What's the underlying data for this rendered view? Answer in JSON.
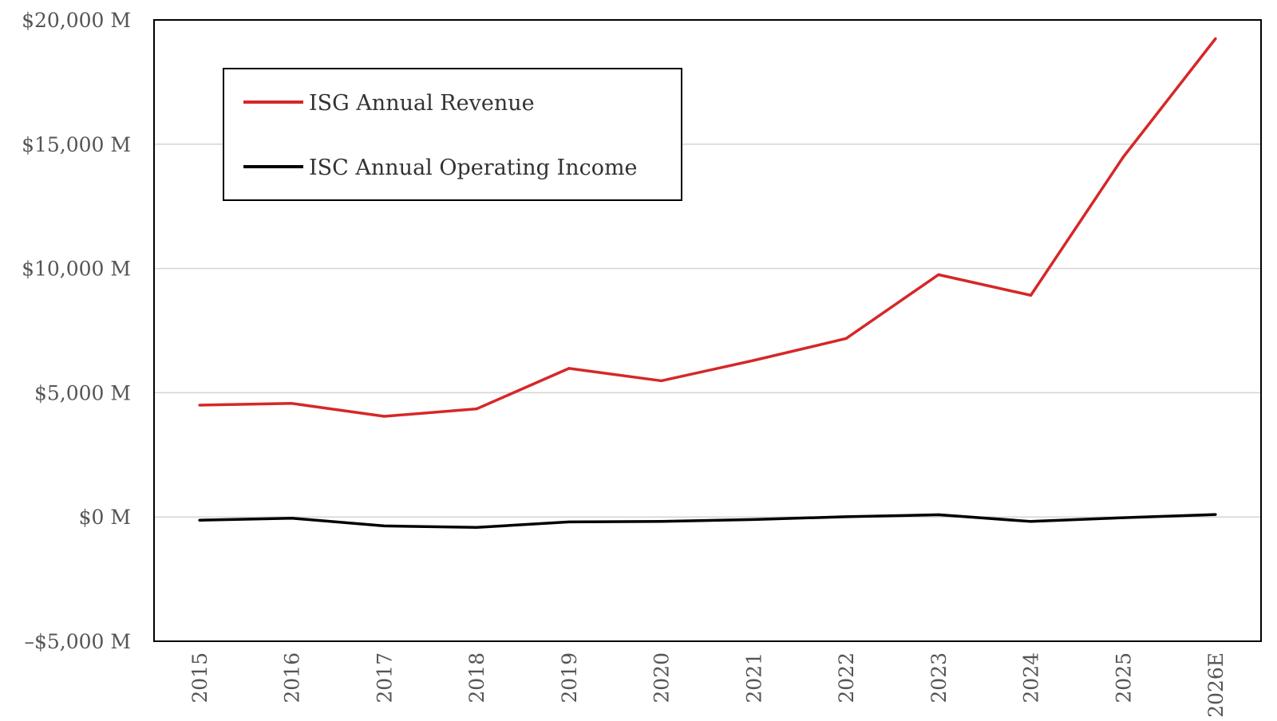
{
  "chart_data": {
    "type": "line",
    "title": "",
    "xlabel": "",
    "ylabel": "",
    "categories": [
      "2015",
      "2016",
      "2017",
      "2018",
      "2019",
      "2020",
      "2021",
      "2022",
      "2023",
      "2024",
      "2025",
      "2026E"
    ],
    "series": [
      {
        "name": "ISG Annual Revenue",
        "color": "#d62728",
        "values": [
          4500,
          4570,
          4050,
          4350,
          5980,
          5480,
          6300,
          7180,
          9750,
          8920,
          14480,
          19250
        ]
      },
      {
        "name": "ISC Annual Operating Income",
        "color": "#000000",
        "values": [
          -130,
          -50,
          -360,
          -420,
          -200,
          -180,
          -100,
          10,
          90,
          -180,
          -30,
          100
        ]
      }
    ],
    "ylim": [
      -5000,
      20000
    ],
    "yticks": [
      -5000,
      0,
      5000,
      10000,
      15000,
      20000
    ],
    "ytick_labels": [
      "–$5,000 M",
      "$0 M",
      "$5,000 M",
      "$10,000 M",
      "$15,000 M",
      "$20,000 M"
    ],
    "grid": true,
    "legend": "top-left"
  }
}
